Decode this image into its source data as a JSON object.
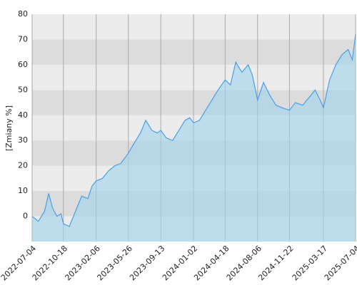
{
  "chart_data": {
    "type": "area-line",
    "y_label": "[Zmiany %]",
    "x": [
      "2022-07-04",
      "2022-07-25",
      "2022-08-15",
      "2022-08-29",
      "2022-09-12",
      "2022-09-26",
      "2022-10-10",
      "2022-10-18",
      "2022-11-07",
      "2022-11-28",
      "2022-12-19",
      "2023-01-09",
      "2023-01-23",
      "2023-02-06",
      "2023-02-27",
      "2023-03-20",
      "2023-04-10",
      "2023-05-01",
      "2023-05-26",
      "2023-06-15",
      "2023-07-06",
      "2023-07-24",
      "2023-08-14",
      "2023-09-01",
      "2023-09-13",
      "2023-10-02",
      "2023-10-23",
      "2023-11-13",
      "2023-12-04",
      "2023-12-20",
      "2024-01-02",
      "2024-01-22",
      "2024-02-12",
      "2024-03-04",
      "2024-03-25",
      "2024-04-18",
      "2024-05-06",
      "2024-05-24",
      "2024-06-14",
      "2024-07-05",
      "2024-07-19",
      "2024-08-06",
      "2024-08-26",
      "2024-09-16",
      "2024-10-07",
      "2024-10-28",
      "2024-11-22",
      "2024-12-12",
      "2025-01-06",
      "2025-01-27",
      "2025-02-17",
      "2025-03-06",
      "2025-03-17",
      "2025-04-07",
      "2025-04-28",
      "2025-05-19",
      "2025-06-09",
      "2025-06-23",
      "2025-07-04"
    ],
    "series": [
      {
        "color": "#4a9ee8",
        "fill": "#9fd4ec",
        "values": [
          0,
          -2,
          2,
          9,
          3,
          0,
          1,
          -3,
          -4,
          2,
          8,
          7,
          12,
          14,
          15,
          18,
          20,
          21,
          25,
          29,
          33,
          38,
          34,
          33,
          34,
          31,
          30,
          34,
          38,
          39,
          37,
          38,
          42,
          46,
          50,
          54,
          52,
          61,
          57,
          60,
          56,
          46,
          53,
          48,
          44,
          43,
          42,
          45,
          44,
          47,
          50,
          46,
          43,
          54,
          60,
          64,
          66,
          62,
          72
        ]
      }
    ],
    "xlim": [
      "2022-07-04",
      "2025-07-04"
    ],
    "xticks": [
      "2022-07-04",
      "2022-10-18",
      "2023-02-06",
      "2023-05-26",
      "2023-09-13",
      "2024-01-02",
      "2024-04-18",
      "2024-08-06",
      "2024-11-22",
      "2025-03-17",
      "2025-07-04"
    ],
    "ylim": [
      -10,
      80
    ],
    "yticks": [
      0,
      10,
      20,
      30,
      40,
      50,
      60,
      70,
      80
    ],
    "band_colors": [
      "#ececec",
      "#dcdcdc"
    ],
    "grid": true
  }
}
